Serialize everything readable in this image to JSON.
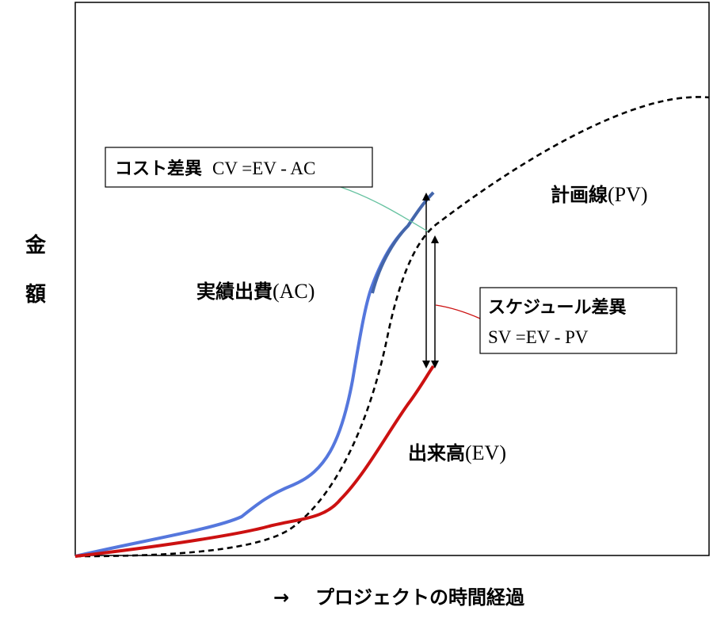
{
  "diagram": {
    "y_label_chars": [
      "金",
      "額"
    ],
    "x_label_arrow": "→",
    "x_label": "プロジェクトの時間経過",
    "lines": {
      "pv": {
        "jp": "計画線",
        "code": "(PV)",
        "color": "#000000"
      },
      "ac": {
        "jp": "実績出費",
        "code": "(AC)",
        "color": "#5577dd"
      },
      "ev": {
        "jp": "出来高",
        "code": "(EV)",
        "color": "#cc1111"
      }
    },
    "callouts": {
      "cost_variance": {
        "jp": "コスト差異",
        "formula": "CV =EV - AC",
        "leader_color": "#66c2a0"
      },
      "schedule_variance": {
        "jp": "スケジュール差異",
        "formula": "SV =EV - PV",
        "leader_color": "#cc1111"
      }
    }
  }
}
